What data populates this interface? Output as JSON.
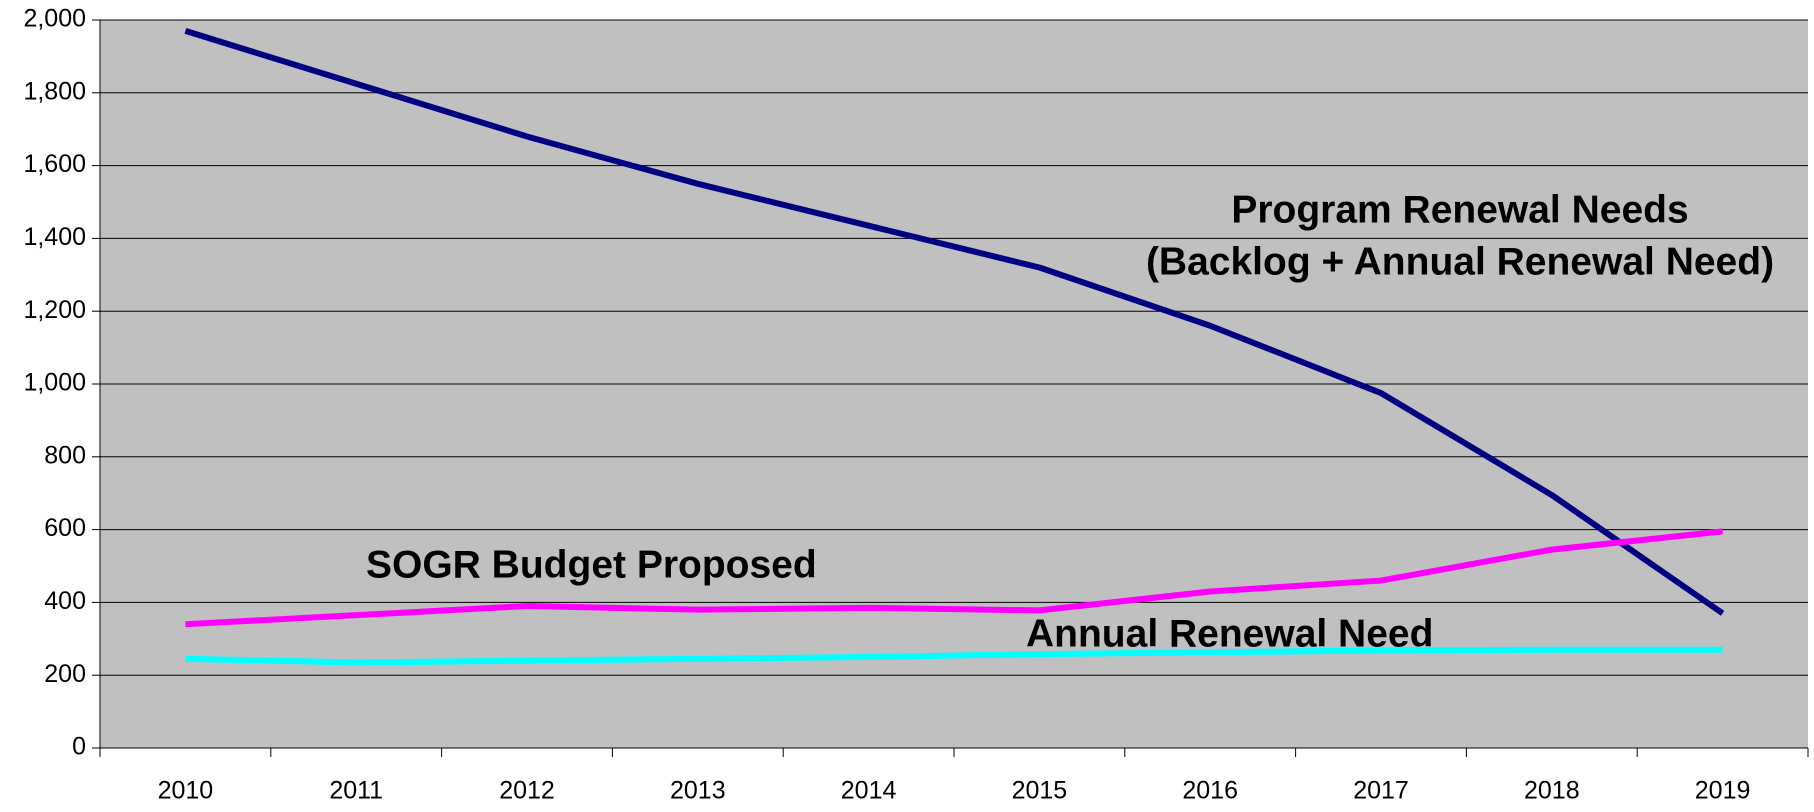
{
  "chart_data": {
    "type": "line",
    "categories": [
      "2010",
      "2011",
      "2012",
      "2013",
      "2014",
      "2015",
      "2016",
      "2017",
      "2018",
      "2019"
    ],
    "series": [
      {
        "name": "Program Renewal Needs",
        "color": "#000080",
        "values": [
          1970,
          1825,
          1680,
          1550,
          1435,
          1320,
          1160,
          975,
          695,
          370
        ]
      },
      {
        "name": "SOGR Budget Proposed",
        "color": "#ff00ff",
        "values": [
          340,
          365,
          390,
          380,
          385,
          378,
          430,
          460,
          545,
          595
        ]
      },
      {
        "name": "Annual Renewal Need",
        "color": "#00ffff",
        "values": [
          245,
          235,
          240,
          245,
          250,
          258,
          263,
          268,
          270,
          270
        ]
      }
    ],
    "annotations": [
      "(Backlog + Annual Renewal Need)"
    ],
    "ylim": [
      0,
      2000
    ],
    "yticks": [
      0,
      200,
      400,
      600,
      800,
      {
        "value": 1000,
        "label": "1,000"
      },
      {
        "value": 1200,
        "label": "1,200"
      },
      {
        "value": 1400,
        "label": "1,400"
      },
      {
        "value": 1600,
        "label": "1,600"
      },
      {
        "value": 1800,
        "label": "1,800"
      },
      {
        "value": 2000,
        "label": "2,000"
      }
    ],
    "grid": true,
    "background": "#c0c0c0"
  }
}
